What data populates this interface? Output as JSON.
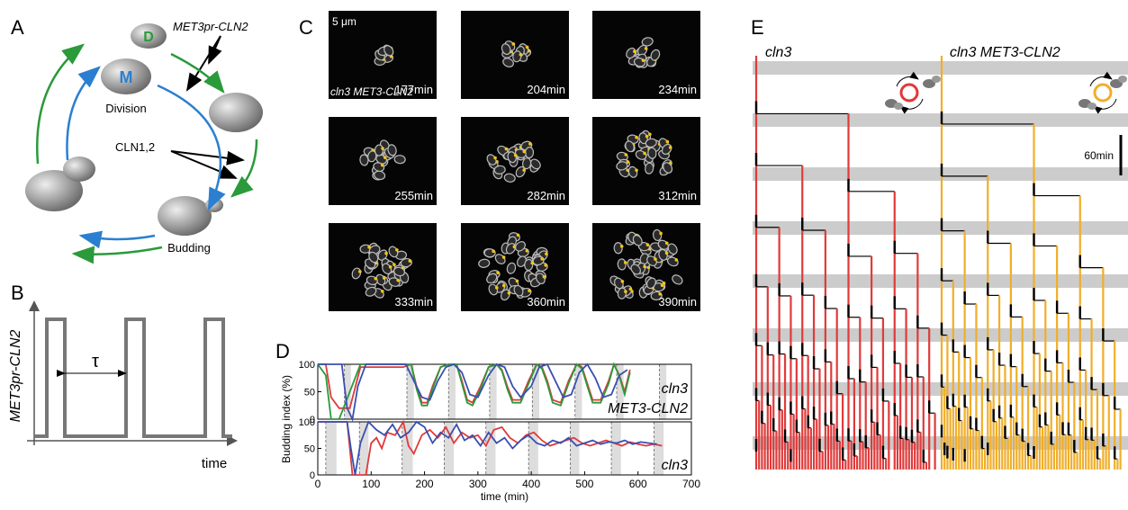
{
  "panels": {
    "a": {
      "label": "A",
      "construct": "MET3pr-CLN2",
      "division": "Division",
      "cln": "CLN1,2",
      "budding": "Budding",
      "cell_letters": [
        "D",
        "M"
      ]
    },
    "b": {
      "label": "B",
      "y_label": "MET3pr-CLN2",
      "x_label": "time",
      "period": "τ"
    },
    "c": {
      "label": "C",
      "scale": "5 μm",
      "strain": "cln3 MET3-CLN2",
      "timepoints": [
        "177min",
        "204min",
        "234min",
        "255min",
        "282min",
        "312min",
        "333min",
        "360min",
        "390min"
      ]
    },
    "d": {
      "label": "D",
      "y_label": "Budding index (%)"
    },
    "e": {
      "label": "E",
      "left": "cln3",
      "right": "cln3 MET3-CLN2",
      "scale": "60min"
    }
  },
  "chart_data": [
    {
      "type": "line",
      "xlim": [
        0,
        700
      ],
      "ylim": [
        0,
        100
      ],
      "yticks": [
        0,
        50,
        100
      ],
      "annotation": [
        "cln3",
        "MET3-CLN2"
      ],
      "shaded_regions": [
        [
          50,
          62
        ],
        [
          167,
          180
        ],
        [
          245,
          258
        ],
        [
          322,
          335
        ],
        [
          402,
          415
        ],
        [
          482,
          495
        ],
        [
          560,
          573
        ],
        [
          640,
          653
        ]
      ],
      "series": [
        {
          "color": "#e03a3a",
          "x": [
            0,
            15,
            25,
            40,
            60,
            80,
            100,
            120,
            140,
            160,
            175,
            185,
            195,
            205,
            215,
            230,
            245,
            260,
            270,
            280,
            290,
            305,
            320,
            335,
            345,
            355,
            365,
            380,
            395,
            410,
            420,
            430,
            440,
            455,
            470,
            485,
            495,
            505,
            515,
            530,
            545,
            555,
            565,
            575,
            585
          ],
          "values": [
            100,
            100,
            40,
            20,
            20,
            95,
            95,
            95,
            95,
            95,
            100,
            60,
            30,
            30,
            60,
            95,
            100,
            100,
            70,
            35,
            30,
            60,
            95,
            100,
            90,
            60,
            35,
            35,
            70,
            100,
            95,
            70,
            35,
            30,
            70,
            100,
            95,
            65,
            35,
            35,
            70,
            100,
            80,
            50,
            90
          ]
        },
        {
          "color": "#2a9a3a",
          "x": [
            0,
            15,
            25,
            40,
            60,
            80,
            100,
            120,
            140,
            160,
            175,
            185,
            195,
            205,
            215,
            230,
            245,
            260,
            270,
            280,
            290,
            305,
            320,
            335,
            345,
            355,
            365,
            380,
            395,
            410,
            420,
            430,
            440,
            455,
            470,
            485,
            495,
            505,
            515,
            530,
            545,
            555,
            565,
            575,
            585
          ],
          "values": [
            100,
            80,
            0,
            0,
            50,
            100,
            100,
            100,
            100,
            100,
            100,
            55,
            25,
            25,
            55,
            95,
            100,
            100,
            65,
            30,
            25,
            55,
            95,
            100,
            88,
            55,
            30,
            30,
            65,
            100,
            92,
            65,
            30,
            25,
            65,
            100,
            92,
            60,
            30,
            30,
            65,
            100,
            78,
            45,
            85
          ]
        },
        {
          "color": "#3a4fb0",
          "x": [
            0,
            30,
            45,
            55,
            65,
            75,
            90,
            110,
            130,
            150,
            165,
            180,
            195,
            210,
            225,
            240,
            255,
            270,
            285,
            300,
            320,
            335,
            350,
            365,
            380,
            400,
            415,
            430,
            445,
            460,
            475,
            490,
            505,
            520,
            535,
            550,
            565,
            580
          ],
          "values": [
            100,
            100,
            100,
            20,
            0,
            60,
            100,
            100,
            100,
            100,
            100,
            70,
            40,
            35,
            70,
            95,
            100,
            85,
            45,
            40,
            80,
            100,
            95,
            60,
            40,
            60,
            95,
            100,
            70,
            40,
            45,
            85,
            100,
            75,
            40,
            45,
            80,
            90
          ]
        }
      ]
    },
    {
      "type": "line",
      "xlim": [
        0,
        700
      ],
      "ylim": [
        0,
        100
      ],
      "yticks": [
        0,
        50,
        100
      ],
      "xticks": [
        0,
        100,
        200,
        300,
        400,
        500,
        600,
        700
      ],
      "xlabel": "time (min)",
      "annotation": "cln3",
      "shaded_regions": [
        [
          15,
          35
        ],
        [
          78,
          95
        ],
        [
          158,
          178
        ],
        [
          237,
          255
        ],
        [
          315,
          333
        ],
        [
          395,
          413
        ],
        [
          473,
          490
        ],
        [
          550,
          568
        ],
        [
          630,
          648
        ]
      ],
      "series": [
        {
          "color": "#e03a3a",
          "x": [
            0,
            20,
            40,
            55,
            60,
            65,
            75,
            90,
            100,
            110,
            120,
            130,
            145,
            160,
            170,
            180,
            195,
            210,
            225,
            240,
            255,
            270,
            285,
            300,
            315,
            330,
            345,
            360,
            375,
            390,
            405,
            420,
            435,
            450,
            465,
            480,
            495,
            510,
            525,
            540,
            555,
            570,
            585,
            600,
            615,
            630,
            645
          ],
          "values": [
            100,
            100,
            100,
            100,
            50,
            0,
            0,
            0,
            60,
            70,
            50,
            80,
            75,
            100,
            55,
            40,
            75,
            85,
            70,
            90,
            60,
            80,
            70,
            75,
            55,
            85,
            90,
            70,
            60,
            75,
            80,
            65,
            55,
            60,
            65,
            70,
            60,
            55,
            60,
            65,
            60,
            55,
            62,
            58,
            55,
            58,
            55
          ]
        },
        {
          "color": "#3a4fb0",
          "x": [
            0,
            30,
            45,
            55,
            62,
            70,
            80,
            95,
            110,
            125,
            140,
            155,
            170,
            185,
            200,
            215,
            230,
            245,
            260,
            275,
            290,
            305,
            320,
            335,
            350,
            365,
            380,
            395,
            410,
            425,
            440,
            455,
            470,
            485,
            500,
            515,
            530,
            545,
            560,
            575,
            590,
            605,
            620,
            635
          ],
          "values": [
            100,
            100,
            100,
            100,
            50,
            0,
            60,
            100,
            85,
            75,
            95,
            70,
            80,
            100,
            90,
            60,
            80,
            70,
            95,
            65,
            75,
            55,
            80,
            60,
            70,
            50,
            65,
            75,
            60,
            55,
            65,
            60,
            70,
            55,
            60,
            65,
            58,
            62,
            60,
            65,
            58,
            62,
            60,
            58
          ]
        }
      ]
    }
  ]
}
